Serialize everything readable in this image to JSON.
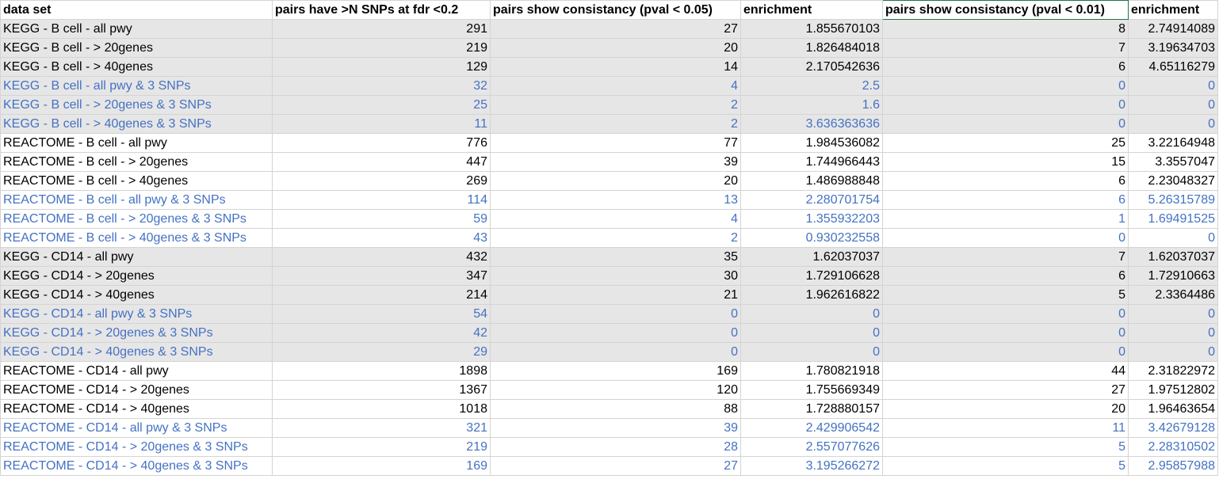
{
  "sheet": {
    "headers": [
      "data set",
      "pairs have >N SNPs at fdr <0.2",
      "pairs show consistancy (pval < 0.05)",
      "enrichment",
      "pairs show consistancy (pval < 0.01)",
      "enrichment"
    ],
    "rows": [
      {
        "cells": [
          "KEGG - B cell - all pwy",
          "291",
          "27",
          "1.855670103",
          "8",
          "2.74914089"
        ],
        "shaded": true,
        "blue": false
      },
      {
        "cells": [
          "KEGG - B cell - > 20genes",
          "219",
          "20",
          "1.826484018",
          "7",
          "3.19634703"
        ],
        "shaded": true,
        "blue": false
      },
      {
        "cells": [
          "KEGG - B cell - > 40genes",
          "129",
          "14",
          "2.170542636",
          "6",
          "4.65116279"
        ],
        "shaded": true,
        "blue": false
      },
      {
        "cells": [
          "KEGG - B cell - all pwy & 3 SNPs",
          "32",
          "4",
          "2.5",
          "0",
          "0"
        ],
        "shaded": true,
        "blue": true
      },
      {
        "cells": [
          "KEGG - B cell - > 20genes & 3 SNPs",
          "25",
          "2",
          "1.6",
          "0",
          "0"
        ],
        "shaded": true,
        "blue": true
      },
      {
        "cells": [
          "KEGG - B cell - > 40genes & 3 SNPs",
          "11",
          "2",
          "3.636363636",
          "0",
          "0"
        ],
        "shaded": true,
        "blue": true
      },
      {
        "cells": [
          "REACTOME - B cell - all pwy",
          "776",
          "77",
          "1.984536082",
          "25",
          "3.22164948"
        ],
        "shaded": false,
        "blue": false
      },
      {
        "cells": [
          "REACTOME - B cell - > 20genes",
          "447",
          "39",
          "1.744966443",
          "15",
          "3.3557047"
        ],
        "shaded": false,
        "blue": false
      },
      {
        "cells": [
          "REACTOME - B cell - > 40genes",
          "269",
          "20",
          "1.486988848",
          "6",
          "2.23048327"
        ],
        "shaded": false,
        "blue": false
      },
      {
        "cells": [
          "REACTOME - B cell - all pwy & 3 SNPs",
          "114",
          "13",
          "2.280701754",
          "6",
          "5.26315789"
        ],
        "shaded": false,
        "blue": true
      },
      {
        "cells": [
          "REACTOME - B cell - > 20genes & 3 SNPs",
          "59",
          "4",
          "1.355932203",
          "1",
          "1.69491525"
        ],
        "shaded": false,
        "blue": true
      },
      {
        "cells": [
          "REACTOME - B cell - > 40genes & 3 SNPs",
          "43",
          "2",
          "0.930232558",
          "0",
          "0"
        ],
        "shaded": false,
        "blue": true
      },
      {
        "cells": [
          "KEGG - CD14 - all pwy",
          "432",
          "35",
          "1.62037037",
          "7",
          "1.62037037"
        ],
        "shaded": true,
        "blue": false
      },
      {
        "cells": [
          "KEGG - CD14 - > 20genes",
          "347",
          "30",
          "1.729106628",
          "6",
          "1.72910663"
        ],
        "shaded": true,
        "blue": false
      },
      {
        "cells": [
          "KEGG - CD14 - > 40genes",
          "214",
          "21",
          "1.962616822",
          "5",
          "2.3364486"
        ],
        "shaded": true,
        "blue": false
      },
      {
        "cells": [
          "KEGG - CD14 - all pwy & 3 SNPs",
          "54",
          "0",
          "0",
          "0",
          "0"
        ],
        "shaded": true,
        "blue": true
      },
      {
        "cells": [
          "KEGG - CD14 - > 20genes & 3 SNPs",
          "42",
          "0",
          "0",
          "0",
          "0"
        ],
        "shaded": true,
        "blue": true
      },
      {
        "cells": [
          "KEGG - CD14 - > 40genes & 3 SNPs",
          "29",
          "0",
          "0",
          "0",
          "0"
        ],
        "shaded": true,
        "blue": true
      },
      {
        "cells": [
          "REACTOME - CD14 - all pwy",
          "1898",
          "169",
          "1.780821918",
          "44",
          "2.31822972"
        ],
        "shaded": false,
        "blue": false
      },
      {
        "cells": [
          "REACTOME - CD14 - > 20genes",
          "1367",
          "120",
          "1.755669349",
          "27",
          "1.97512802"
        ],
        "shaded": false,
        "blue": false
      },
      {
        "cells": [
          "REACTOME - CD14 - > 40genes",
          "1018",
          "88",
          "1.728880157",
          "20",
          "1.96463654"
        ],
        "shaded": false,
        "blue": false
      },
      {
        "cells": [
          "REACTOME - CD14 - all pwy & 3 SNPs",
          "321",
          "39",
          "2.429906542",
          "11",
          "3.42679128"
        ],
        "shaded": false,
        "blue": true
      },
      {
        "cells": [
          "REACTOME - CD14 - > 20genes & 3 SNPs",
          "219",
          "28",
          "2.557077626",
          "5",
          "2.28310502"
        ],
        "shaded": false,
        "blue": true
      },
      {
        "cells": [
          "REACTOME - CD14 - > 40genes & 3 SNPs",
          "169",
          "27",
          "3.195266272",
          "5",
          "2.95857988"
        ],
        "shaded": false,
        "blue": true
      }
    ],
    "colors": {
      "shaded_fill": "#e7e6e6",
      "blue_text": "#4472c4",
      "grid_line": "#d4d4d4",
      "selection_border": "#217346"
    }
  }
}
